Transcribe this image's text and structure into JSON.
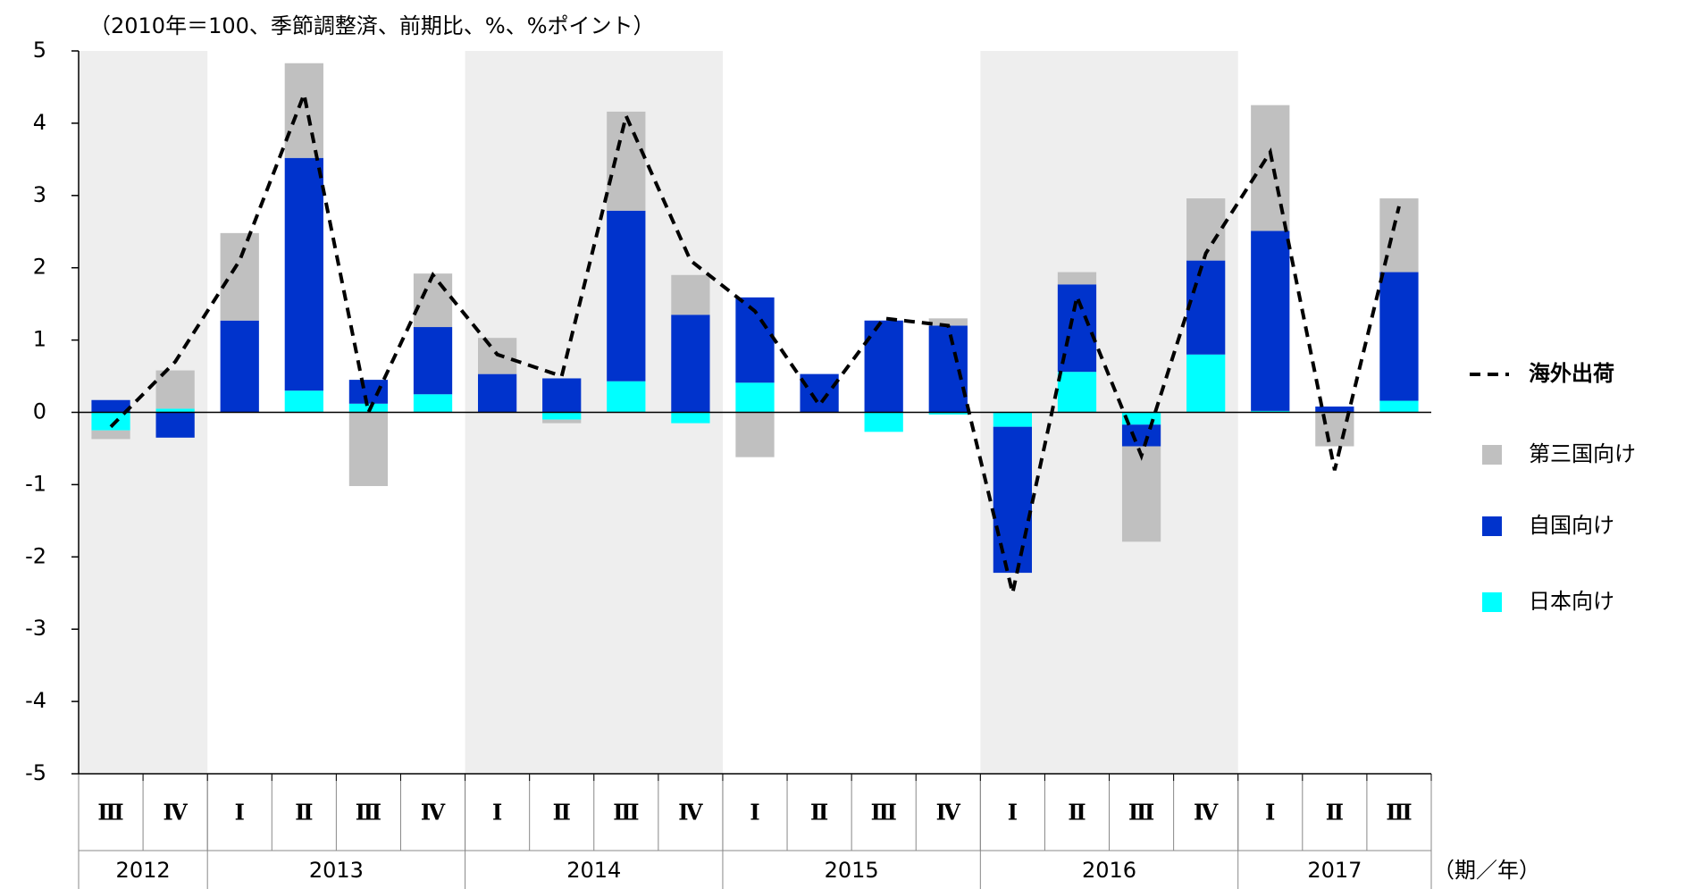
{
  "chart_data": {
    "type": "bar",
    "subtitle": "（2010年＝100、季節調整済、前期比、%、%ポイント）",
    "x_unit": "（期／年）",
    "categories": [
      "Ⅲ",
      "Ⅳ",
      "Ⅰ",
      "Ⅱ",
      "Ⅲ",
      "Ⅳ",
      "Ⅰ",
      "Ⅱ",
      "Ⅲ",
      "Ⅳ",
      "Ⅰ",
      "Ⅱ",
      "Ⅲ",
      "Ⅳ",
      "Ⅰ",
      "Ⅱ",
      "Ⅲ",
      "Ⅳ",
      "Ⅰ",
      "Ⅱ",
      "Ⅲ"
    ],
    "year_groups": [
      {
        "label": "2012",
        "quarters": 2
      },
      {
        "label": "2013",
        "quarters": 4
      },
      {
        "label": "2014",
        "quarters": 4
      },
      {
        "label": "2015",
        "quarters": 4
      },
      {
        "label": "2016",
        "quarters": 4
      },
      {
        "label": "2017",
        "quarters": 3
      }
    ],
    "series": [
      {
        "name": "海外出荷",
        "type": "line",
        "color": "#000000",
        "values": [
          -0.2,
          0.7,
          2.1,
          4.4,
          0.0,
          1.9,
          0.8,
          0.5,
          4.1,
          2.1,
          1.4,
          0.1,
          1.3,
          1.2,
          -2.5,
          1.6,
          -0.6,
          2.2,
          3.6,
          -0.8,
          2.85
        ]
      },
      {
        "name": "第三国向け",
        "type": "bar",
        "color": "#c0c0c0",
        "values": [
          -0.12,
          0.53,
          1.21,
          1.31,
          -1.02,
          0.74,
          0.5,
          -0.05,
          1.37,
          0.55,
          -0.62,
          0,
          0,
          0.1,
          0,
          0.17,
          -1.32,
          0.86,
          1.74,
          -0.47,
          1.02
        ]
      },
      {
        "name": "自国向け",
        "type": "bar",
        "color": "#0033cc",
        "values": [
          0.17,
          -0.35,
          1.27,
          3.22,
          0.33,
          0.93,
          0.53,
          0.47,
          2.36,
          1.35,
          1.18,
          0.53,
          1.27,
          1.2,
          -2.02,
          1.21,
          -0.3,
          1.3,
          2.49,
          0.08,
          1.78
        ]
      },
      {
        "name": "日本向け",
        "type": "bar",
        "color": "#00ffff",
        "values": [
          -0.25,
          0.05,
          0,
          0.3,
          0.12,
          0.25,
          0,
          -0.1,
          0.43,
          -0.15,
          0.41,
          0,
          -0.27,
          -0.03,
          -0.2,
          0.56,
          -0.17,
          0.8,
          0.02,
          0,
          0.16
        ]
      }
    ],
    "ylim": [
      -5,
      5
    ],
    "yticks": [
      -5,
      -4,
      -3,
      -2,
      -1,
      0,
      1,
      2,
      3,
      4,
      5
    ]
  }
}
